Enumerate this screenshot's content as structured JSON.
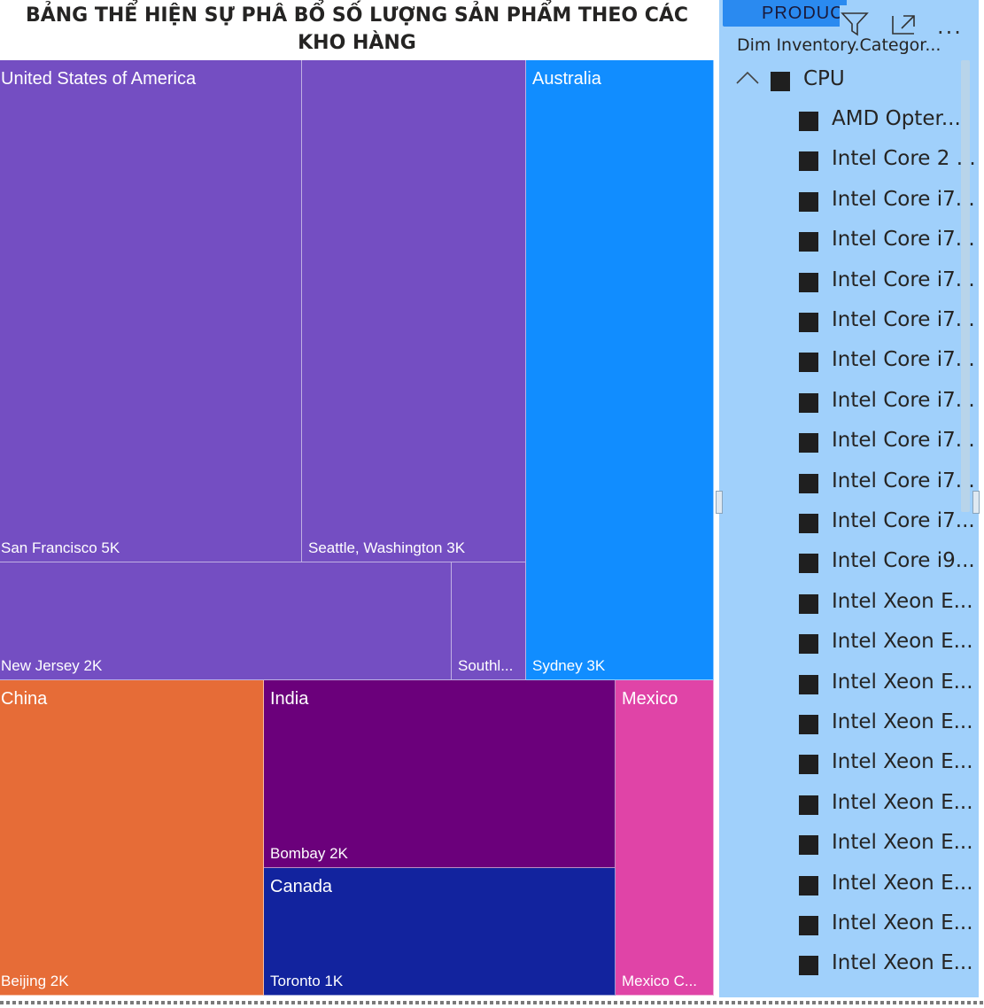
{
  "chart_data": {
    "type": "treemap",
    "title": "BẢNG THỂ HIỆN SỰ PHÂ BỔ SỐ LƯỢNG SẢN PHẨM THEO CÁC KHO HÀNG",
    "groups": [
      {
        "name": "United States of America",
        "color": "#744ec2",
        "children": [
          {
            "name": "San Francisco",
            "label": "San Francisco 5K",
            "value": 5000
          },
          {
            "name": "Seattle, Washington",
            "label": "Seattle, Washington 3K",
            "value": 3000
          },
          {
            "name": "New Jersey",
            "label": "New Jersey 2K",
            "value": 2000
          },
          {
            "name": "Southl...",
            "label": "Southl...",
            "value": null
          }
        ]
      },
      {
        "name": "Australia",
        "color": "#118dff",
        "children": [
          {
            "name": "Sydney",
            "label": "Sydney 3K",
            "value": 3000
          }
        ]
      },
      {
        "name": "China",
        "color": "#e66c37",
        "children": [
          {
            "name": "Beijing",
            "label": "Beijing 2K",
            "value": 2000
          }
        ]
      },
      {
        "name": "India",
        "color": "#6b007b",
        "children": [
          {
            "name": "Bombay",
            "label": "Bombay 2K",
            "value": 2000
          }
        ]
      },
      {
        "name": "Canada",
        "color": "#12239e",
        "children": [
          {
            "name": "Toronto",
            "label": "Toronto 1K",
            "value": 1000
          }
        ]
      },
      {
        "name": "Mexico",
        "color": "#e044a7",
        "children": [
          {
            "name": "Mexico C...",
            "label": "Mexico C...",
            "value": null
          }
        ]
      }
    ]
  },
  "slicer": {
    "tab_label": "PRODUC",
    "field_name": "Dim Inventory.Categor...",
    "header_icons": [
      "filter-icon",
      "focus-mode-icon",
      "more-options-icon"
    ],
    "more_label": "...",
    "colors": {
      "background": "#a0d0fb",
      "tab": "#2a8af0",
      "checkbox": "#1f1f1f"
    },
    "category": {
      "label": "CPU",
      "expanded": true,
      "icon": "chevron-up-icon"
    },
    "items": [
      "AMD Opter...",
      "Intel Core 2 ...",
      "Intel Core i7...",
      "Intel Core i7...",
      "Intel Core i7...",
      "Intel Core i7...",
      "Intel Core i7...",
      "Intel Core i7...",
      "Intel Core i7...",
      "Intel Core i7...",
      "Intel Core i7...",
      "Intel Core i9...",
      "Intel Xeon E...",
      "Intel Xeon E...",
      "Intel Xeon E...",
      "Intel Xeon E...",
      "Intel Xeon E...",
      "Intel Xeon E...",
      "Intel Xeon E...",
      "Intel Xeon E...",
      "Intel Xeon E...",
      "Intel Xeon E..."
    ]
  }
}
